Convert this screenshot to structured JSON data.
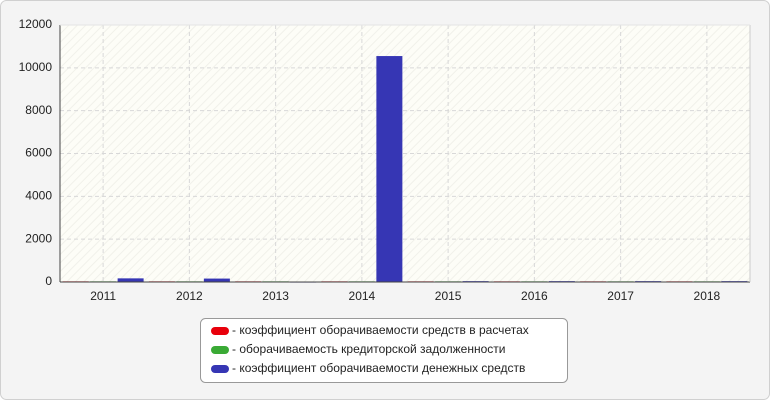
{
  "chart_data": {
    "type": "bar",
    "categories": [
      "2011",
      "2012",
      "2013",
      "2014",
      "2015",
      "2016",
      "2017",
      "2018"
    ],
    "series": [
      {
        "name": "- коэффициент оборачиваемости средств в расчетах",
        "color": "#e8000b",
        "values": [
          30,
          30,
          30,
          30,
          30,
          30,
          30,
          30
        ]
      },
      {
        "name": "- оборачиваемость кредиторской задолженности",
        "color": "#3aaa35",
        "values": [
          30,
          30,
          30,
          30,
          30,
          30,
          30,
          30
        ]
      },
      {
        "name": "- коэффициент оборачиваемости денежных средств",
        "color": "#3636b4",
        "values": [
          170,
          160,
          20,
          10550,
          40,
          40,
          40,
          40
        ]
      }
    ],
    "ylim": [
      0,
      12000
    ],
    "yticks": [
      0,
      2000,
      4000,
      6000,
      8000,
      10000,
      12000
    ],
    "grid": true
  }
}
